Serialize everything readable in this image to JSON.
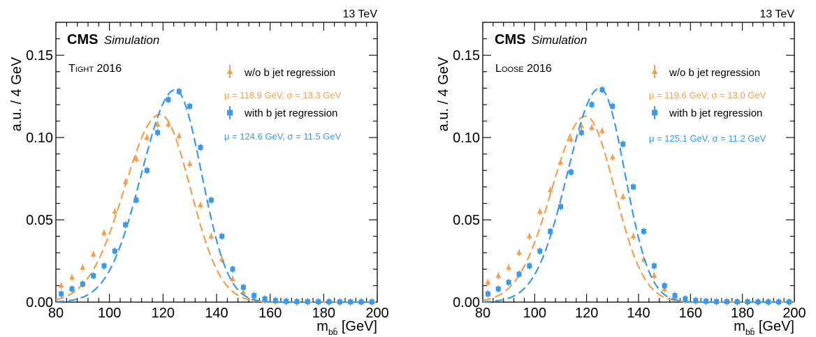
{
  "chart_data": [
    {
      "type": "scatter",
      "energy_label": "13 TeV",
      "cms_label": "CMS",
      "cms_sublabel": "Simulation",
      "category_prefix": "T",
      "category_smallcaps": "IGHT",
      "category_year": " 2016",
      "ylabel": "a.u. / 4 GeV",
      "xlabel_main": "m",
      "xlabel_sub": "bb̄",
      "xlabel_unit": " [GeV]",
      "xlim": [
        80,
        200
      ],
      "ylim": [
        0,
        0.17
      ],
      "x_ticks": [
        80,
        100,
        120,
        140,
        160,
        180,
        200
      ],
      "x_ticklabels": [
        "80",
        "100",
        "120",
        "140",
        "160",
        "180",
        "200"
      ],
      "y_ticks": [
        0,
        0.05,
        0.1,
        0.15
      ],
      "y_ticklabels": [
        "0.00",
        "0.05",
        "0.10",
        "0.15"
      ],
      "legend_position": "top-right",
      "series": [
        {
          "name": "w/o b jet regression",
          "marker": "triangle",
          "color": "#f0a050",
          "fit_label": "μ = 118.9 GeV,  σ  = 13.3 GeV",
          "x": [
            82,
            86,
            90,
            94,
            98,
            102,
            106,
            110,
            114,
            118,
            122,
            126,
            130,
            134,
            138,
            142,
            146,
            150,
            154,
            158,
            162,
            166,
            170,
            174,
            178,
            182,
            186,
            190,
            194,
            198
          ],
          "y": [
            0.01,
            0.015,
            0.021,
            0.029,
            0.042,
            0.055,
            0.073,
            0.087,
            0.1,
            0.108,
            0.108,
            0.101,
            0.084,
            0.059,
            0.04,
            0.026,
            0.014,
            0.006,
            0.002,
            0.001,
            0.0005,
            0.0003,
            0.0002,
            0.0002,
            0.0002,
            0.0001,
            0.0001,
            0.0001,
            0.0001,
            0.0001
          ],
          "fit": {
            "peak": 0.114,
            "mean": 118.9,
            "sigma_left": 13.3,
            "sigma_right": 11.3
          }
        },
        {
          "name": "with b jet regression",
          "marker": "square",
          "color": "#3a9ae8",
          "fit_label": "μ = 124.6 GeV,  σ  = 11.5 GeV",
          "x": [
            82,
            86,
            90,
            94,
            98,
            102,
            106,
            110,
            114,
            118,
            122,
            126,
            130,
            134,
            138,
            142,
            146,
            150,
            154,
            158,
            162,
            166,
            170,
            174,
            178,
            182,
            186,
            190,
            194,
            198
          ],
          "y": [
            0.005,
            0.008,
            0.011,
            0.016,
            0.022,
            0.031,
            0.047,
            0.062,
            0.08,
            0.103,
            0.123,
            0.128,
            0.119,
            0.094,
            0.062,
            0.04,
            0.02,
            0.009,
            0.004,
            0.002,
            0.001,
            0.0005,
            0.0003,
            0.0003,
            0.0002,
            0.0002,
            0.0001,
            0.0001,
            0.0001,
            0.0001
          ],
          "fit": {
            "peak": 0.129,
            "mean": 124.6,
            "sigma_left": 12.6,
            "sigma_right": 9.8
          }
        }
      ]
    },
    {
      "type": "scatter",
      "energy_label": "13 TeV",
      "cms_label": "CMS",
      "cms_sublabel": "Simulation",
      "category_prefix": "L",
      "category_smallcaps": "OOSE",
      "category_year": " 2016",
      "ylabel": "a.u. / 4 GeV",
      "xlabel_main": "m",
      "xlabel_sub": "bb̄",
      "xlabel_unit": " [GeV]",
      "xlim": [
        80,
        200
      ],
      "ylim": [
        0,
        0.17
      ],
      "x_ticks": [
        80,
        100,
        120,
        140,
        160,
        180,
        200
      ],
      "x_ticklabels": [
        "80",
        "100",
        "120",
        "140",
        "160",
        "180",
        "200"
      ],
      "y_ticks": [
        0,
        0.05,
        0.1,
        0.15
      ],
      "y_ticklabels": [
        "0.00",
        "0.05",
        "0.10",
        "0.15"
      ],
      "legend_position": "top-right",
      "series": [
        {
          "name": "w/o b jet regression",
          "marker": "triangle",
          "color": "#f0a050",
          "fit_label": "μ = 119.6 GeV,  σ  = 13.0 GeV",
          "x": [
            82,
            86,
            90,
            94,
            98,
            102,
            106,
            110,
            114,
            118,
            122,
            126,
            130,
            134,
            138,
            142,
            146,
            150,
            154,
            158,
            162,
            166,
            170,
            174,
            178,
            182,
            186,
            190,
            194,
            198
          ],
          "y": [
            0.012,
            0.016,
            0.021,
            0.03,
            0.04,
            0.055,
            0.068,
            0.085,
            0.099,
            0.107,
            0.106,
            0.104,
            0.088,
            0.064,
            0.04,
            0.026,
            0.016,
            0.008,
            0.003,
            0.001,
            0.0005,
            0.0003,
            0.0002,
            0.0002,
            0.0001,
            0.0001,
            0.0001,
            0.0001,
            0.0001,
            0.0001
          ],
          "fit": {
            "peak": 0.113,
            "mean": 119.6,
            "sigma_left": 13.0,
            "sigma_right": 11.2
          }
        },
        {
          "name": "with b jet regression",
          "marker": "square",
          "color": "#3a9ae8",
          "fit_label": "μ = 125.1 GeV,  σ  = 11.2 GeV",
          "x": [
            82,
            86,
            90,
            94,
            98,
            102,
            106,
            110,
            114,
            118,
            122,
            126,
            130,
            134,
            138,
            142,
            146,
            150,
            154,
            158,
            162,
            166,
            170,
            174,
            178,
            182,
            186,
            190,
            194,
            198
          ],
          "y": [
            0.005,
            0.008,
            0.012,
            0.017,
            0.022,
            0.031,
            0.043,
            0.058,
            0.079,
            0.103,
            0.12,
            0.129,
            0.119,
            0.096,
            0.07,
            0.043,
            0.022,
            0.01,
            0.004,
            0.002,
            0.001,
            0.0005,
            0.0003,
            0.0003,
            0.0002,
            0.0002,
            0.0001,
            0.0001,
            0.0001,
            0.0001
          ],
          "fit": {
            "peak": 0.13,
            "mean": 125.1,
            "sigma_left": 12.4,
            "sigma_right": 9.6
          }
        }
      ]
    }
  ]
}
